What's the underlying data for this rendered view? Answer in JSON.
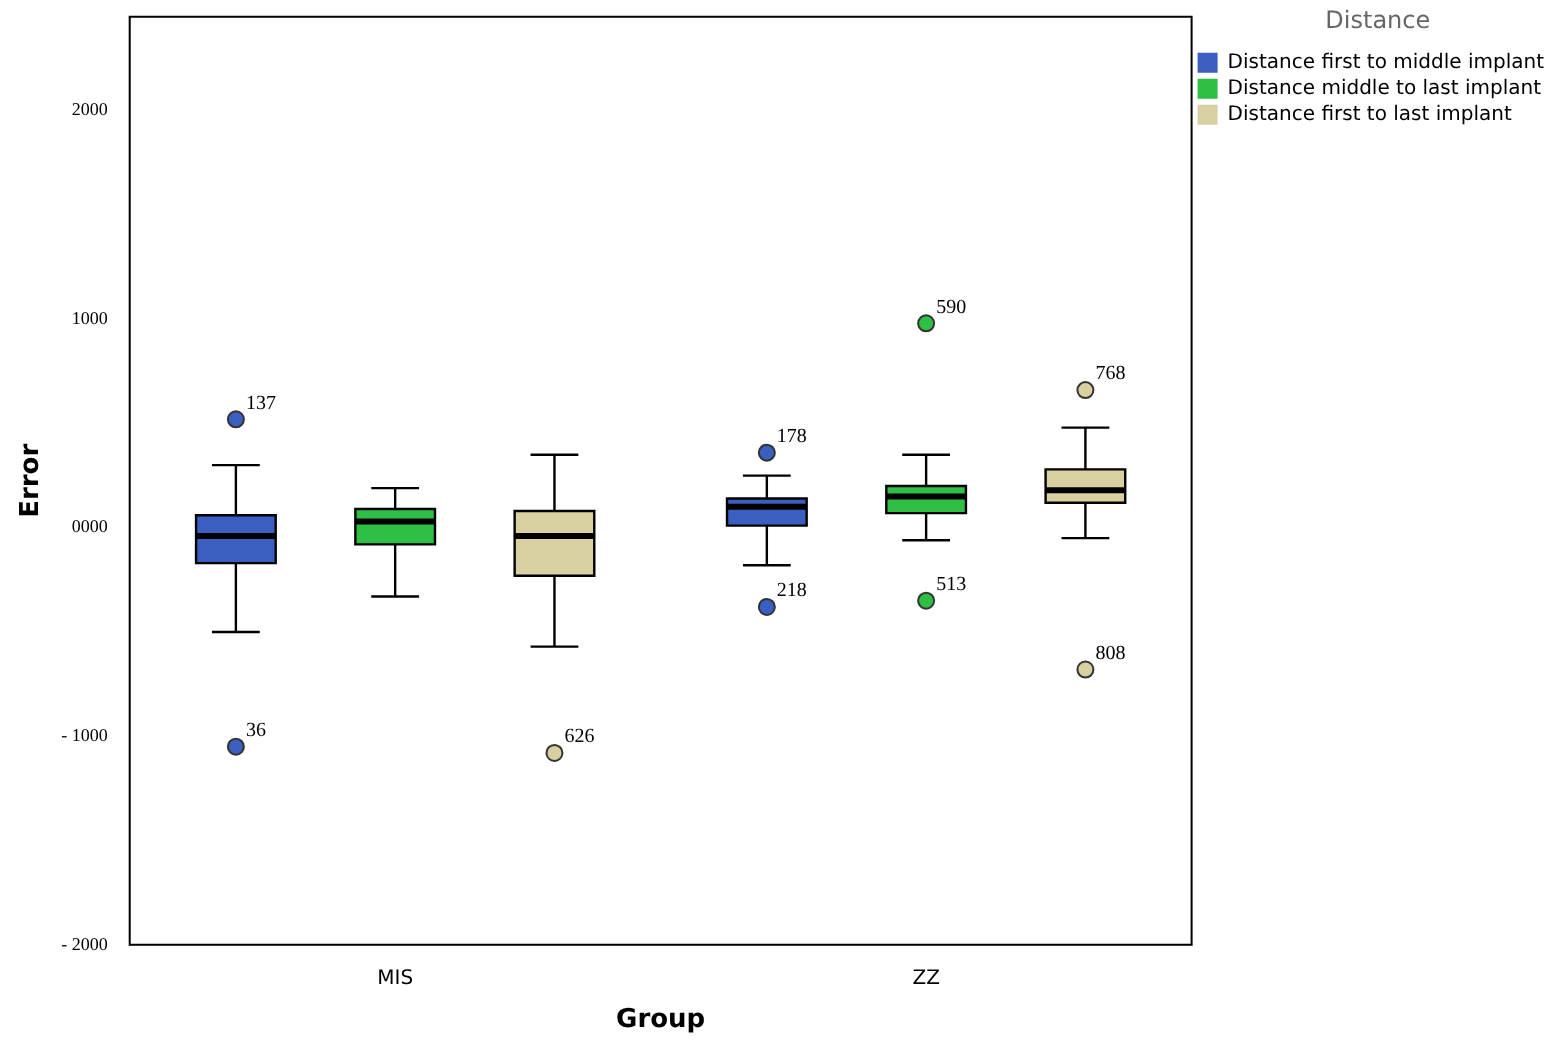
{
  "chart_data": {
    "type": "box",
    "xlabel": "Group",
    "ylabel": "Error",
    "legend_title": "Distance",
    "legend": "top right",
    "grid": false,
    "categories": [
      "MIS",
      "ZZ"
    ],
    "ylim": [
      -2000,
      2450
    ],
    "yticks": [
      {
        "value": -2000,
        "label": "- 2000"
      },
      {
        "value": -1000,
        "label": "- 1000"
      },
      {
        "value": 0,
        "label": "0000"
      },
      1000,
      2000
    ],
    "series": [
      {
        "name": "Distance first to middle implant",
        "color": "#3b5fc0",
        "boxes": [
          {
            "low": -500,
            "q1": -170,
            "median": -40,
            "q3": 60,
            "high": 300,
            "outliers": [
              520,
              -1050
            ]
          },
          {
            "low": -180,
            "q1": 10,
            "median": 100,
            "q3": 140,
            "high": 250,
            "outliers": [
              360,
              -380
            ]
          }
        ]
      },
      {
        "name": "Distance middle to last implant",
        "color": "#2fbf45",
        "boxes": [
          {
            "low": -330,
            "q1": -80,
            "median": 30,
            "q3": 90,
            "high": 190
          },
          {
            "low": -60,
            "q1": 70,
            "median": 150,
            "q3": 200,
            "high": 350,
            "outliers": [
              980,
              -350
            ]
          }
        ]
      },
      {
        "name": "Distance first to last implant",
        "color": "#d8d0a0",
        "boxes": [
          {
            "low": -570,
            "q1": -230,
            "median": -40,
            "q3": 80,
            "high": 350,
            "outliers": [
              -1080
            ]
          },
          {
            "low": -50,
            "q1": 120,
            "median": 180,
            "q3": 280,
            "high": 480,
            "outliers": [
              660,
              -680
            ]
          }
        ]
      }
    ],
    "annotations": [
      "137",
      "36",
      "626",
      "178",
      "218",
      "590",
      "513",
      "768",
      "808"
    ]
  }
}
